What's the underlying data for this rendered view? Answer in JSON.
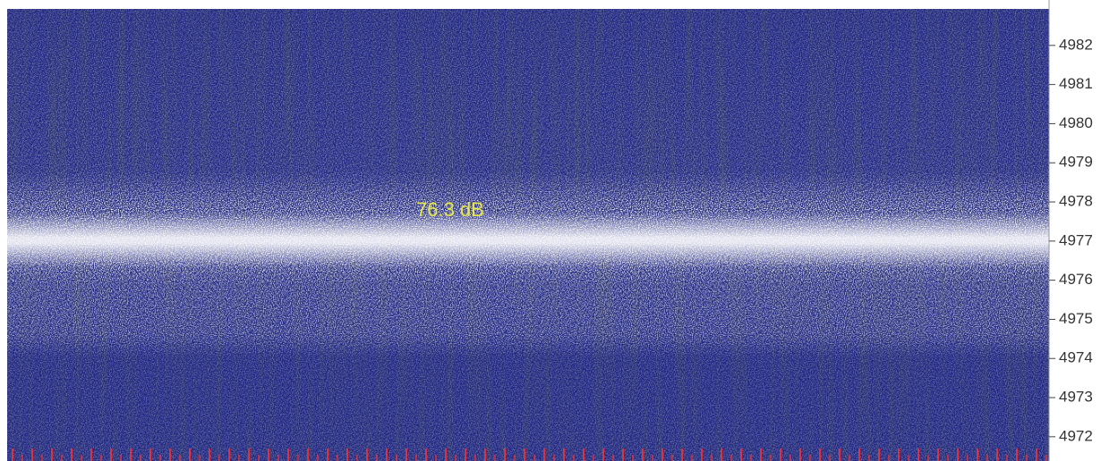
{
  "chart_data": {
    "type": "spectrogram",
    "annotation": "76.3 dB",
    "ylim": [
      4971.38,
      4983.16
    ],
    "yticks": [
      4972,
      4973,
      4974,
      4975,
      4976,
      4977,
      4978,
      4979,
      4980,
      4981,
      4982
    ]
  }
}
